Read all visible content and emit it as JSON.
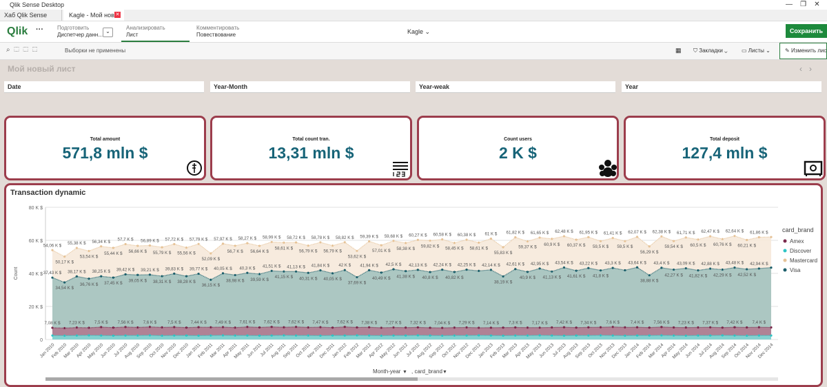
{
  "window_title": "Qlik Sense Desktop",
  "tabs": [
    "Хаб Qlik Sense Desktop",
    "Kagle - Мой нов..."
  ],
  "nav": {
    "logo": "Qlik",
    "prepare": {
      "label": "Подготовить",
      "value": "Диспетчер данн..."
    },
    "analyze": {
      "label": "Анализировать",
      "value": "Лист"
    },
    "narrate": {
      "label": "Комментировать",
      "value": "Повествование"
    },
    "app": "Kagle",
    "save": "Сохранить"
  },
  "toolbar": {
    "selections": "Выборки не применены",
    "bookmarks": "Закладки",
    "sheets": "Листы",
    "edit": "Изменить лист"
  },
  "sheet_title": "Мой новый лист",
  "filters": [
    "Date",
    "Year-Month",
    "Year-weak",
    "Year"
  ],
  "kpis": [
    {
      "title": "Total amount",
      "value": "571,8 mln $"
    },
    {
      "title": "Total count tran.",
      "value": "13,31 mln $"
    },
    {
      "title": "Count users",
      "value": "2 K $"
    },
    {
      "title": "Total deposit",
      "value": "127,4 mln $"
    }
  ],
  "chart_data": {
    "type": "area",
    "title": "Transaction dynamic",
    "y_label": "Count",
    "legend_title": "card_brand",
    "dimensions": [
      "Month-year",
      ", card_brand"
    ],
    "ylim": [
      0,
      80
    ],
    "yticks": [
      0,
      {
        "value": 20,
        "label": "20 K $"
      },
      {
        "value": 40,
        "label": "40 K $"
      },
      {
        "value": 60,
        "label": "60 K $"
      },
      {
        "value": 80,
        "label": "80 K $"
      }
    ],
    "grid": true,
    "categories": [
      "Jan 2010",
      "Feb 2010",
      "Mar 2010",
      "Apr 2010",
      "May 2010",
      "Jun 2010",
      "Jul 2010",
      "Aug 2010",
      "Sep 2010",
      "Oct 2010",
      "Nov 2010",
      "Dec 2010",
      "Jan 2011",
      "Feb 2011",
      "Mar 2011",
      "Apr 2011",
      "May 2011",
      "Jun 2011",
      "Jul 2011",
      "Aug 2011",
      "Sep 2011",
      "Oct 2011",
      "Nov 2011",
      "Dec 2011",
      "Jan 2012",
      "Feb 2012",
      "Mar 2012",
      "Apr 2012",
      "May 2012",
      "Jun 2012",
      "Jul 2012",
      "Aug 2012",
      "Sep 2012",
      "Oct 2012",
      "Nov 2012",
      "Dec 2012",
      "Jan 2013",
      "Feb 2013",
      "Mar 2013",
      "Apr 2013",
      "May 2013",
      "Jun 2013",
      "Jul 2013",
      "Aug 2013",
      "Sep 2013",
      "Oct 2013",
      "Nov 2013",
      "Dec 2013",
      "Jan 2014",
      "Feb 2014",
      "Mar 2014",
      "Apr 2014",
      "May 2014",
      "Jun 2014",
      "Jul 2014",
      "Aug 2014",
      "Sep 2014",
      "Oct 2014",
      "Nov 2014",
      "Dec 2014"
    ],
    "series": [
      {
        "name": "Mastercard",
        "color": "#e6c398",
        "fill": "#f6e9da",
        "values": [
          54.06,
          50.17,
          55.38,
          53.54,
          56.34,
          55.44,
          57.7,
          56.66,
          56.89,
          55.79,
          57.72,
          55.56,
          57.79,
          52.09,
          57.97,
          56.7,
          58.27,
          56.64,
          58.99,
          58.61,
          58.72,
          56.79,
          58.78,
          56.79,
          58.82,
          53.62,
          59.39,
          57.01,
          59.68,
          58.38,
          60.27,
          59.82,
          60.58,
          58.45,
          60.38,
          58.61,
          61,
          55.83,
          61.82,
          59.37,
          61.65,
          60.9,
          62.48,
          60.37,
          61.95,
          59.5,
          61.41,
          59.5,
          62.07,
          56.29,
          62.38,
          59.54,
          61.71,
          60.5,
          62.47,
          60.76,
          62.64,
          60.21,
          61.86,
          62.0
        ],
        "value_labels": [
          "54,06 K $",
          "50,17 K $",
          "55,38 K $",
          "53,54 K $",
          "56,34 K $",
          "55,44 K $",
          "57,7 K $",
          "56,66 K $",
          "56,89 K $",
          "55,79 K $",
          "57,72 K $",
          "55,56 K $",
          "57,79 K $",
          "52,09 K $",
          "57,97 K $",
          "56,7 K $",
          "58,27 K $",
          "56,64 K $",
          "58,99 K $",
          "58,61 K $",
          "58,72 K $",
          "56,79 K $",
          "58,78 K $",
          "56,79 K $",
          "58,82 K $",
          "53,62 K $",
          "59,39 K $",
          "57,01 K $",
          "59,68 K $",
          "58,38 K $",
          "60,27 K $",
          "59,82 K $",
          "60,58 K $",
          "58,45 K $",
          "60,38 K $",
          "58,61 K $",
          "61 K $",
          "55,83 K $",
          "61,82 K $",
          "59,37 K $",
          "61,65 K $",
          "60,9 K $",
          "62,48 K $",
          "60,37 K $",
          "61,95 K $",
          "59,5 K $",
          "61,41 K $",
          "59,5 K $",
          "62,07 K $",
          "56,29 K $",
          "62,38 K $",
          "59,54 K $",
          "61,71 K $",
          "60,5 K $",
          "62,47 K $",
          "60,76 K $",
          "62,64 K $",
          "60,21 K $",
          "61,86 K $",
          null
        ]
      },
      {
        "name": "Visa",
        "color": "#1d5f6b",
        "fill": "#a3c3bf",
        "values": [
          37.43,
          34.54,
          38.17,
          36.76,
          38.25,
          37.45,
          39.42,
          39.05,
          39.21,
          38.31,
          39.83,
          38.28,
          39.77,
          36.15,
          40.05,
          38.98,
          40.3,
          39.59,
          41.51,
          41.15,
          41.13,
          40.31,
          41.84,
          40.05,
          42,
          37.69,
          41.94,
          40.49,
          42.5,
          41.38,
          42.13,
          40.8,
          42.24,
          40.82,
          42.25,
          41.5,
          42.14,
          38.19,
          42.61,
          40.9,
          42.95,
          41.13,
          43.54,
          41.61,
          43.22,
          41.8,
          43.3,
          41.9,
          43.64,
          38.88,
          43.4,
          42.27,
          43.09,
          41.82,
          42.88,
          42.29,
          43.48,
          42.52,
          42.94,
          43.5
        ],
        "value_labels": [
          "37,43 K $",
          "34,54 K $",
          "38,17 K $",
          "36,76 K $",
          "38,25 K $",
          "37,45 K $",
          "39,42 K $",
          "39,05 K $",
          "39,21 K $",
          "38,31 K $",
          "39,83 K $",
          "38,28 K $",
          "39,77 K $",
          "36,15 K $",
          "40,05 K $",
          "38,98 K $",
          "40,3 K $",
          "39,59 K $",
          "41,51 K $",
          "41,15 K $",
          "41,13 K $",
          "40,31 K $",
          "41,84 K $",
          "40,05 K $",
          "42 K $",
          "37,69 K $",
          "41,94 K $",
          "40,49 K $",
          "42,5 K $",
          "41,38 K $",
          "42,13 K $",
          "40,8 K $",
          "42,24 K $",
          "40,82 K $",
          "42,25 K $",
          null,
          "42,14 K $",
          "38,19 K $",
          "42,61 K $",
          "40,9 K $",
          "42,95 K $",
          "41,13 K $",
          "43,54 K $",
          "41,61 K $",
          "43,22 K $",
          "41,8 K $",
          "43,3 K $",
          null,
          "43,64 K $",
          "38,88 K $",
          "43,4 K $",
          "42,27 K $",
          "43,09 K $",
          "41,82 K $",
          "42,88 K $",
          "42,29 K $",
          "43,48 K $",
          "42,52 K $",
          "42,94 K $",
          null
        ]
      },
      {
        "name": "Amex",
        "color": "#7a2a4c",
        "fill": "#b07a90",
        "values": [
          7.08,
          6.9,
          7.23,
          7.1,
          7.5,
          7.2,
          7.56,
          7.3,
          7.6,
          7.33,
          7.5,
          7.2,
          7.44,
          7.4,
          7.49,
          7.2,
          7.61,
          7.3,
          7.62,
          7.4,
          7.62,
          7.3,
          7.47,
          7.2,
          7.62,
          7.3,
          7.38,
          7.1,
          7.27,
          7.2,
          7.32,
          7.1,
          7.04,
          7.2,
          7.29,
          7.1,
          7.14,
          7.2,
          7.3,
          7.2,
          7.17,
          7.3,
          7.42,
          7.2,
          7.34,
          7.4,
          7.6,
          7.35,
          7.4,
          7.2,
          7.56,
          7.3,
          7.23,
          7.3,
          7.37,
          7.2,
          7.42,
          7.3,
          7.4,
          7.3
        ],
        "value_labels": [
          "7,08 K $",
          null,
          "7,23 K $",
          null,
          "7,5 K $",
          null,
          "7,56 K $",
          null,
          "7,6 K $",
          null,
          "7,5 K $",
          null,
          "7,44 K $",
          null,
          "7,49 K $",
          null,
          "7,61 K $",
          null,
          "7,62 K $",
          null,
          "7,62 K $",
          null,
          "7,47 K $",
          null,
          "7,62 K $",
          null,
          "7,38 K $",
          null,
          "7,27 K $",
          null,
          "7,32 K $",
          null,
          "7,04 K $",
          null,
          "7,29 K $",
          null,
          "7,14 K $",
          null,
          "7,3 K $",
          null,
          "7,17 K $",
          null,
          "7,42 K $",
          null,
          "7,34 K $",
          null,
          "7,6 K $",
          null,
          "7,4 K $",
          null,
          "7,56 K $",
          null,
          "7,23 K $",
          null,
          "7,37 K $",
          null,
          "7,42 K $",
          null,
          "7,4 K $",
          null
        ]
      },
      {
        "name": "Discover",
        "color": "#2ec4c4",
        "fill": "#7fd9d6",
        "values": [
          2.4,
          2.3,
          2.4,
          2.5,
          2.4,
          2.3,
          2.4,
          2.4,
          2.5,
          2.3,
          2.4,
          2.4,
          2.3,
          2.4,
          2.5,
          2.4,
          2.4,
          2.3,
          2.4,
          2.5,
          2.4,
          2.4,
          2.3,
          2.4,
          2.4,
          2.5,
          2.4,
          2.3,
          2.4,
          2.4,
          2.5,
          2.4,
          2.3,
          2.4,
          2.4,
          2.5,
          2.4,
          2.3,
          2.4,
          2.4,
          2.5,
          2.4,
          2.3,
          2.4,
          2.4,
          2.5,
          2.4,
          2.3,
          2.4,
          2.4,
          2.5,
          2.4,
          2.3,
          2.4,
          2.4,
          2.5,
          2.4,
          2.3,
          2.4,
          2.4
        ]
      }
    ],
    "legend_order": [
      2,
      3,
      0,
      1
    ]
  }
}
